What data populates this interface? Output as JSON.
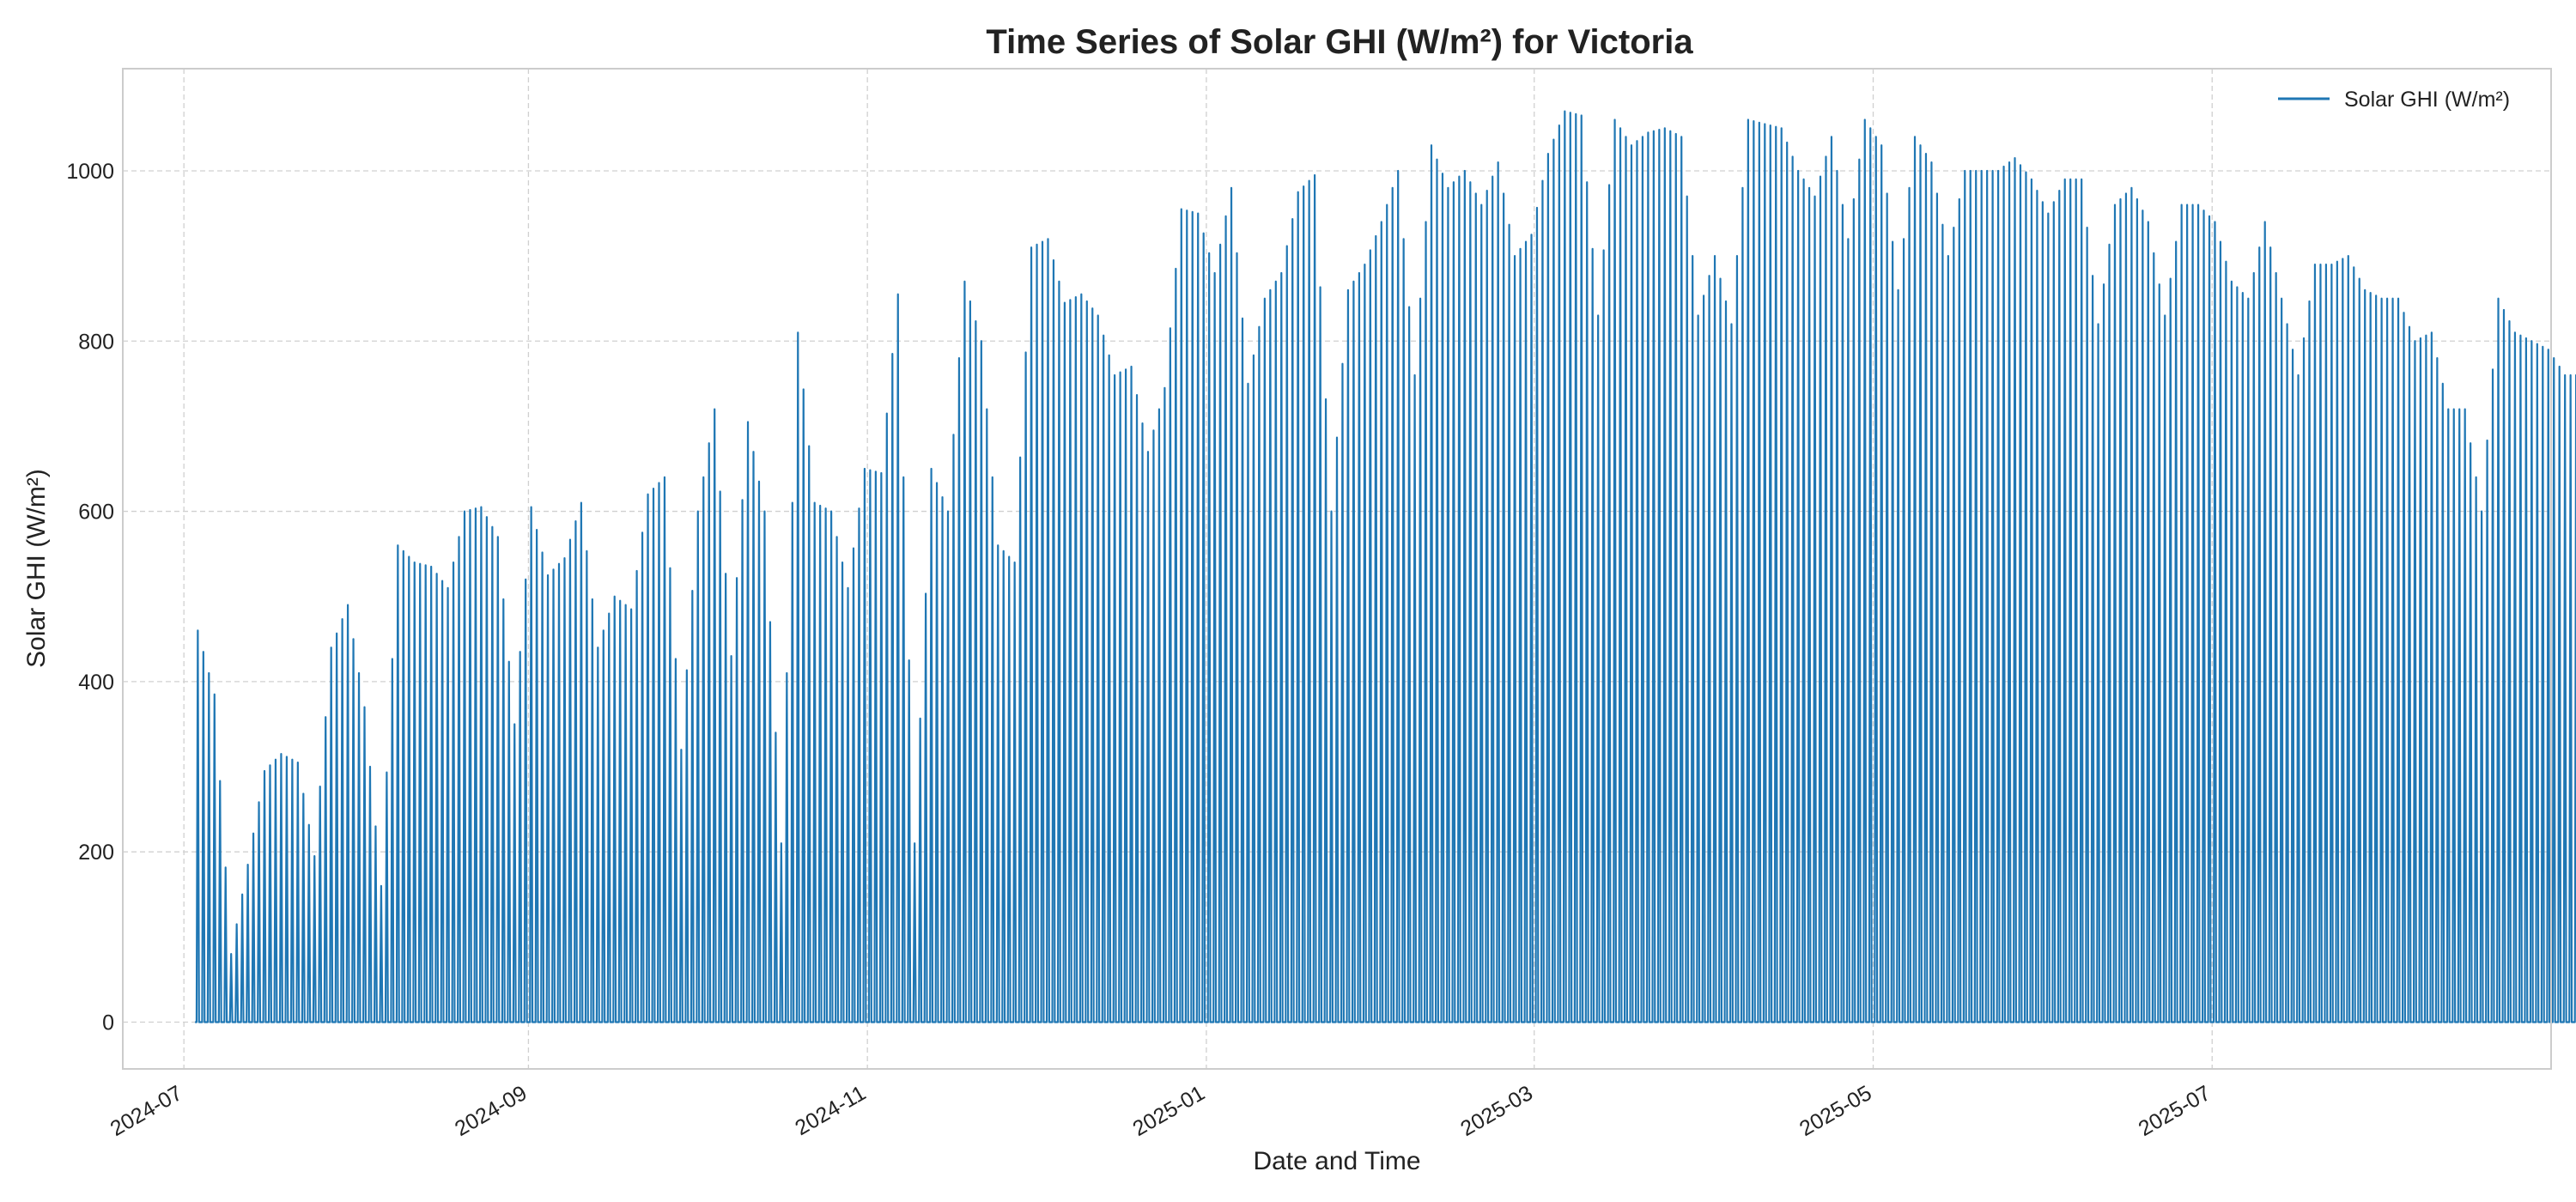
{
  "chart_data": {
    "type": "line",
    "title": "Time Series of Solar GHI (W/m²) for Victoria",
    "xlabel": "Date and Time",
    "ylabel": "Solar GHI (W/m²)",
    "x_range": [
      "2024-06-20",
      "2025-08-31"
    ],
    "ylim": [
      -55,
      1120
    ],
    "x_ticks": [
      "2024-07-01",
      "2024-09-01",
      "2024-11-01",
      "2025-01-01",
      "2025-03-01",
      "2025-05-01",
      "2025-07-01"
    ],
    "x_tick_labels": [
      "2024-07",
      "2024-09",
      "2024-11",
      "2025-01",
      "2025-03",
      "2025-05",
      "2025-07"
    ],
    "y_ticks": [
      0,
      200,
      400,
      600,
      800,
      1000
    ],
    "grid": true,
    "legend": {
      "placement": "top-right"
    },
    "color": "#1f77b4",
    "series": [
      {
        "name": "Solar GHI (W/m²)",
        "daily_peak_dates_start": "2024-07-03",
        "sample_period_days": 3,
        "values": [
          460,
          385,
          80,
          185,
          295,
          315,
          305,
          195,
          440,
          490,
          370,
          160,
          560,
          540,
          535,
          510,
          600,
          605,
          570,
          350,
          605,
          525,
          545,
          610,
          440,
          500,
          485,
          620,
          640,
          320,
          600,
          720,
          430,
          705,
          600,
          210,
          810,
          610,
          600,
          510,
          650,
          645,
          855,
          210,
          650,
          600,
          870,
          800,
          560,
          540,
          910,
          920,
          845,
          855,
          830,
          760,
          770,
          670,
          745,
          955,
          950,
          880,
          980,
          750,
          850,
          880,
          975,
          995,
          600,
          860,
          890,
          940,
          1000,
          760,
          1030,
          980,
          1000,
          960,
          1010,
          900,
          925,
          1020,
          1070,
          1065,
          830,
          1060,
          1030,
          1045,
          1050,
          1040,
          830,
          900,
          820,
          1060,
          1055,
          1050,
          1000,
          970,
          1040,
          920,
          1060,
          1030,
          860,
          1040,
          1010,
          900,
          1000,
          1000,
          1000,
          1015,
          990,
          950,
          990,
          990,
          820,
          960,
          980,
          940,
          830,
          960,
          960,
          940,
          870,
          850,
          940,
          850,
          760,
          890,
          890,
          900,
          860,
          850,
          850,
          800,
          810,
          720,
          720,
          600,
          850,
          810,
          800,
          790,
          760,
          760,
          750,
          720,
          690,
          700,
          640,
          650,
          620,
          640,
          560,
          550,
          530,
          600,
          600,
          580,
          560,
          520,
          560,
          460,
          520,
          520,
          530,
          490,
          520,
          430,
          440,
          460,
          430,
          420,
          380,
          340,
          440,
          400,
          410,
          420,
          370,
          350,
          390,
          380,
          400,
          460,
          470,
          400,
          440,
          380,
          420,
          450,
          450,
          500,
          480,
          220
        ]
      }
    ]
  }
}
